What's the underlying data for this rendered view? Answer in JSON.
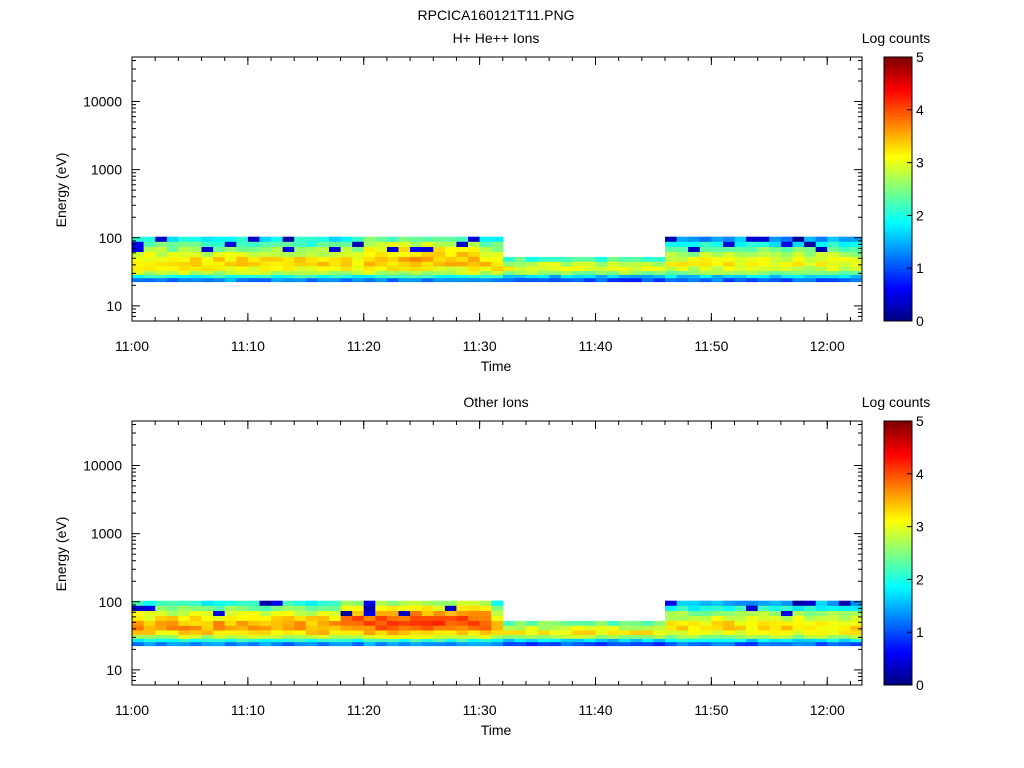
{
  "figure_title": "RPCICA160121T11.PNG",
  "colorbar_ticks": [
    "0",
    "1",
    "2",
    "3",
    "4",
    "5"
  ],
  "chart_data": [
    {
      "type": "heatmap",
      "title": "H+ He++ Ions",
      "xlabel": "Time",
      "ylabel": "Energy (eV)",
      "colorbar_label": "Log counts",
      "colorbar_range": [
        0,
        5
      ],
      "y_scale": "log",
      "ylim": [
        6,
        45000
      ],
      "xlim": [
        "11:00",
        "12:03"
      ],
      "x_ticks": [
        "11:00",
        "11:10",
        "11:20",
        "11:30",
        "11:40",
        "11:50",
        "12:00"
      ],
      "y_ticks": [
        "10",
        "100",
        "1000",
        "10000"
      ],
      "colormap": "jet",
      "energy_bands_eV": [
        95,
        80,
        67,
        57,
        48,
        41,
        35,
        30,
        27,
        24
      ],
      "time_segments": [
        {
          "start": "11:00",
          "end": "11:32",
          "log_counts": [
            1.9,
            2.3,
            2.6,
            2.9,
            3.2,
            3.3,
            3.1,
            2.8,
            2.0,
            1.3
          ]
        },
        {
          "start": "11:20",
          "end": "11:30",
          "log_counts": [
            2.4,
            2.8,
            3.1,
            3.3,
            3.5,
            3.4,
            3.1,
            2.8,
            2.0,
            1.3
          ]
        },
        {
          "start": "11:32",
          "end": "11:46",
          "log_counts": [
            0,
            0,
            0,
            0,
            2.2,
            2.8,
            3.1,
            2.6,
            1.6,
            1.0
          ]
        },
        {
          "start": "11:46",
          "end": "12:03",
          "log_counts": [
            1.4,
            1.9,
            2.4,
            2.7,
            3.0,
            3.1,
            2.9,
            2.5,
            1.7,
            1.1
          ]
        }
      ]
    },
    {
      "type": "heatmap",
      "title": "Other Ions",
      "xlabel": "Time",
      "ylabel": "Energy (eV)",
      "colorbar_label": "Log counts",
      "colorbar_range": [
        0,
        5
      ],
      "y_scale": "log",
      "ylim": [
        6,
        45000
      ],
      "xlim": [
        "11:00",
        "12:03"
      ],
      "x_ticks": [
        "11:00",
        "11:10",
        "11:20",
        "11:30",
        "11:40",
        "11:50",
        "12:00"
      ],
      "y_ticks": [
        "10",
        "100",
        "1000",
        "10000"
      ],
      "colormap": "jet",
      "energy_bands_eV": [
        95,
        80,
        67,
        57,
        48,
        41,
        35,
        30,
        27,
        24
      ],
      "time_segments": [
        {
          "start": "11:00",
          "end": "11:32",
          "log_counts": [
            2.0,
            2.5,
            2.9,
            3.2,
            3.5,
            3.6,
            3.3,
            2.8,
            2.0,
            1.3
          ]
        },
        {
          "start": "11:18",
          "end": "11:31",
          "log_counts": [
            2.7,
            3.2,
            3.6,
            3.9,
            4.0,
            3.8,
            3.4,
            2.9,
            2.1,
            1.3
          ]
        },
        {
          "start": "11:32",
          "end": "11:46",
          "log_counts": [
            0,
            0,
            0,
            0,
            2.4,
            2.9,
            3.2,
            2.7,
            1.7,
            1.0
          ]
        },
        {
          "start": "11:46",
          "end": "12:03",
          "log_counts": [
            1.5,
            2.0,
            2.6,
            2.9,
            3.2,
            3.3,
            3.1,
            2.6,
            1.8,
            1.1
          ]
        }
      ]
    }
  ]
}
